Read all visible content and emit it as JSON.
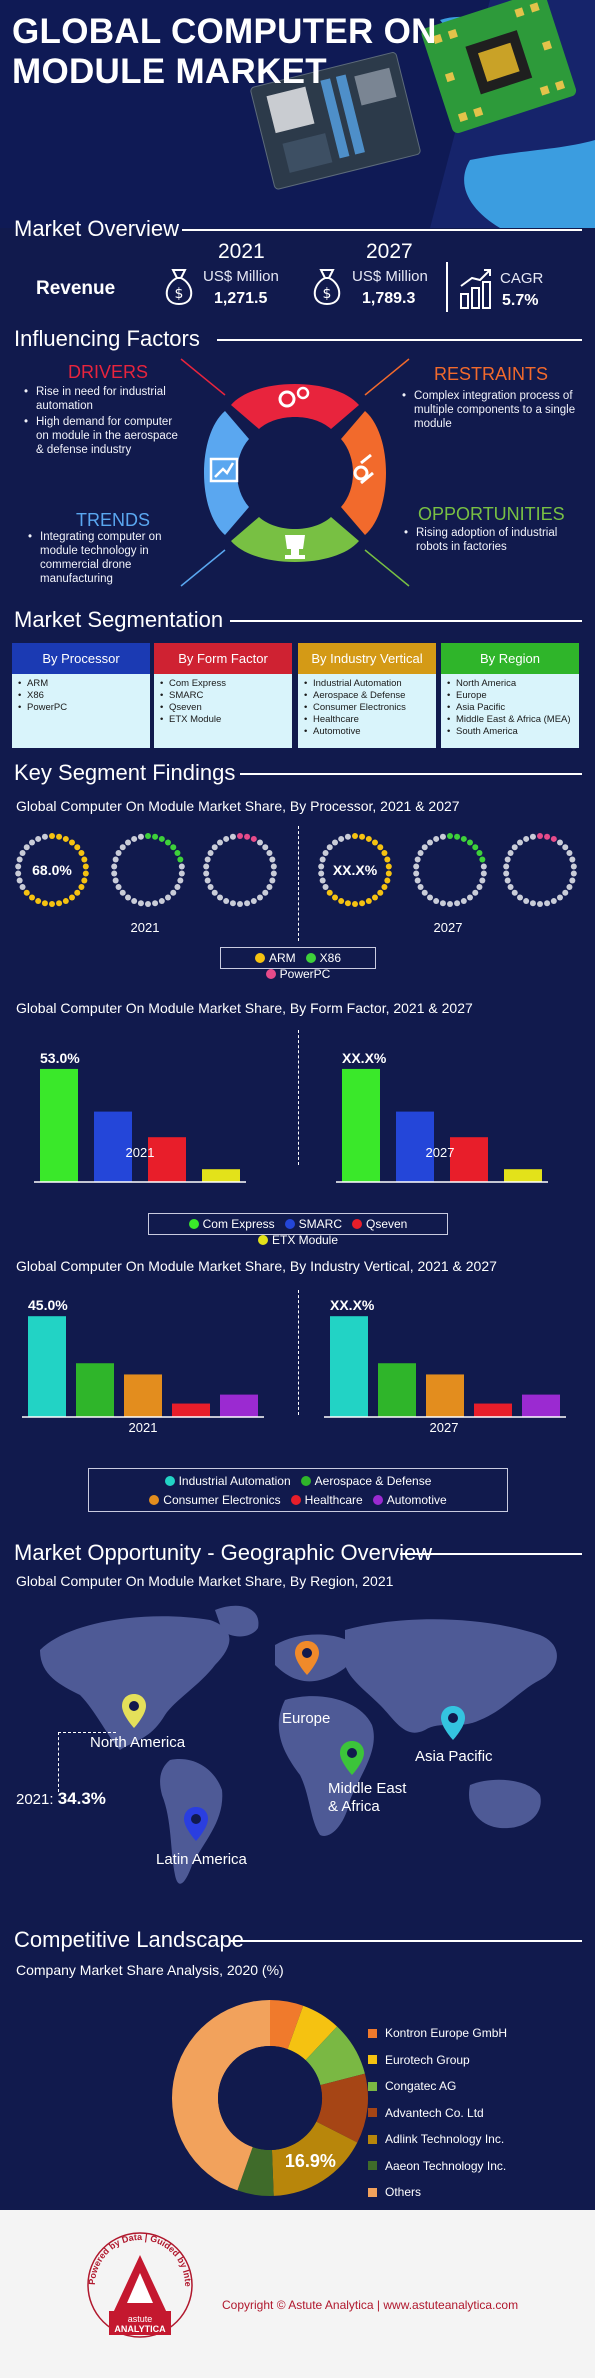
{
  "header": {
    "title_line1": "GLOBAL COMPUTER ON",
    "title_line2": "MODULE MARKET"
  },
  "overview": {
    "heading": "Market Overview",
    "revenue_label": "Revenue",
    "y2021": "2021",
    "y2027": "2027",
    "unit": "US$ Million",
    "value_2021": "1,271.5",
    "value_2027": "1,789.3",
    "cagr_label": "CAGR",
    "cagr_value": "5.7%"
  },
  "factors": {
    "heading": "Influencing Factors",
    "drivers_title": "DRIVERS",
    "drivers": [
      "Rise in need for industrial automation",
      "High demand for computer on module in the aerospace & defense industry"
    ],
    "restraints_title": "RESTRAINTS",
    "restraints": [
      "Complex integration process of multiple components to a single module"
    ],
    "trends_title": "TRENDS",
    "trends": [
      "Integrating computer on module technology in commercial drone manufacturing"
    ],
    "opportunities_title": "OPPORTUNITIES",
    "opportunities": [
      "Rising adoption of industrial robots in factories"
    ],
    "colors": {
      "drivers": "#e8243d",
      "restraints": "#f26a2c",
      "trends": "#5aa7f0",
      "opportunities": "#78c043"
    }
  },
  "segmentation": {
    "heading": "Market Segmentation",
    "columns": [
      {
        "title": "By Processor",
        "color": "#1b3ab3",
        "items": [
          "ARM",
          "X86",
          "PowerPC"
        ]
      },
      {
        "title": "By Form Factor",
        "color": "#cf2232",
        "items": [
          "Com Express",
          "SMARC",
          "Qseven",
          "ETX Module"
        ]
      },
      {
        "title": "By Industry Vertical",
        "color": "#d49a16",
        "items": [
          "Industrial Automation",
          "Aerospace & Defense",
          "Consumer Electronics",
          "Healthcare",
          "Automotive"
        ]
      },
      {
        "title": "By Region",
        "color": "#2fb52a",
        "items": [
          "North America",
          "Europe",
          "Asia Pacific",
          "Middle East & Africa (MEA)",
          "South America"
        ]
      }
    ]
  },
  "findings": {
    "heading": "Key Segment Findings",
    "processor_title": "Global Computer On Module Market Share, By Processor, 2021 & 2027",
    "form_title": "Global Computer On Module Market Share, By Form Factor, 2021 & 2027",
    "vertical_title": "Global Computer On Module Market Share, By Industry Vertical, 2021 & 2027",
    "year_a": "2021",
    "year_b": "2027"
  },
  "geo": {
    "heading": "Market Opportunity - Geographic Overview",
    "title": "Global Computer On Module Market Share, By Region, 2021",
    "regions": {
      "north_america": "North America",
      "europe": "Europe",
      "asia_pacific": "Asia Pacific",
      "mea_line1": "Middle East",
      "mea_line2": "& Africa",
      "latin_america": "Latin America"
    },
    "callout_year": "2021:",
    "callout_value": "34.3%"
  },
  "competitive": {
    "heading": "Competitive Landscape",
    "title": "Company Market Share Analysis, 2020 (%)"
  },
  "footer": {
    "logo_ring_text": "Powered by Data | Guided by Intelligence",
    "logo_name_1": "astute",
    "logo_name_2": "ANALYTICA",
    "copyright": "Copyright © Astute Analytica  |  www.astuteanalytica.com"
  },
  "chart_data": [
    {
      "type": "pie",
      "title": "Global Computer On Module Market Share, By Processor, 2021 & 2027",
      "categories": [
        "ARM",
        "X86",
        "PowerPC"
      ],
      "colors": [
        "#f5c211",
        "#3ed13a",
        "#e64b8a"
      ],
      "series": [
        {
          "name": "2021",
          "values": [
            68.0,
            22.0,
            10.0
          ],
          "label": "68.0%"
        },
        {
          "name": "2027",
          "values": [
            68.0,
            22.0,
            10.0
          ],
          "label": "XX.X%"
        }
      ]
    },
    {
      "type": "bar",
      "title": "Global Computer On Module Market Share, By Form Factor, 2021 & 2027",
      "categories": [
        "Com Express",
        "SMARC",
        "Qseven",
        "ETX Module"
      ],
      "colors": [
        "#3ae82a",
        "#2446d9",
        "#e81e2a",
        "#e3e21a"
      ],
      "series": [
        {
          "name": "2021",
          "values": [
            53.0,
            33.0,
            21.0,
            6.0
          ],
          "label": "53.0%"
        },
        {
          "name": "2027",
          "values": [
            53.0,
            33.0,
            21.0,
            6.0
          ],
          "label": "XX.X%"
        }
      ],
      "ylim": [
        0,
        60
      ]
    },
    {
      "type": "bar",
      "title": "Global Computer On Module Market Share, By Industry Vertical, 2021 & 2027",
      "categories": [
        "Industrial Automation",
        "Aerospace & Defense",
        "Consumer Electronics",
        "Healthcare",
        "Automotive"
      ],
      "colors": [
        "#22d3c5",
        "#2fb52a",
        "#e38d1e",
        "#e81e2a",
        "#9b2ad1"
      ],
      "series": [
        {
          "name": "2021",
          "values": [
            45.0,
            24.0,
            19.0,
            6.0,
            10.0
          ],
          "label": "45.0%"
        },
        {
          "name": "2027",
          "values": [
            45.0,
            24.0,
            19.0,
            6.0,
            10.0
          ],
          "label": "XX.X%"
        }
      ],
      "ylim": [
        0,
        50
      ]
    },
    {
      "type": "pie",
      "title": "Company Market Share Analysis, 2020 (%)",
      "categories": [
        "Kontron Europe GmbH",
        "Eurotech Group",
        "Congatec AG",
        "Advantech Co. Ltd",
        "Adlink Technology Inc.",
        "Aaeon Technology Inc.",
        "Others"
      ],
      "colors": [
        "#f07a2c",
        "#f5c211",
        "#7ab843",
        "#a64515",
        "#b8860b",
        "#3f6b2a",
        "#f2a25c"
      ],
      "values": [
        5.5,
        6.5,
        9.0,
        11.5,
        16.9,
        6.0,
        44.6
      ],
      "highlight_label": "16.9%"
    }
  ]
}
